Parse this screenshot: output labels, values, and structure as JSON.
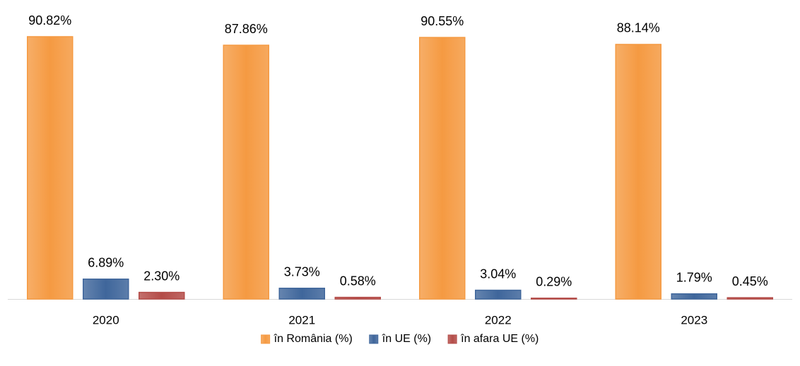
{
  "chart_data": {
    "type": "bar",
    "categories": [
      "2020",
      "2021",
      "2022",
      "2023"
    ],
    "series": [
      {
        "name": "în România (%)",
        "color": "#f59a42",
        "values": [
          90.82,
          87.86,
          90.55,
          88.14
        ],
        "value_labels": [
          "90.82%",
          "87.86%",
          "90.55%",
          "88.14%"
        ]
      },
      {
        "name": "în UE (%)",
        "color": "#3f669b",
        "values": [
          6.89,
          3.73,
          3.04,
          1.79
        ],
        "value_labels": [
          "6.89%",
          "3.73%",
          "3.04%",
          "1.79%"
        ]
      },
      {
        "name": "în afara UE (%)",
        "color": "#b44c48",
        "values": [
          2.3,
          0.58,
          0.29,
          0.45
        ],
        "value_labels": [
          "2.30%",
          "0.58%",
          "0.29%",
          "0.45%"
        ]
      }
    ],
    "ylim": [
      0,
      100
    ],
    "legend": "bottom"
  }
}
